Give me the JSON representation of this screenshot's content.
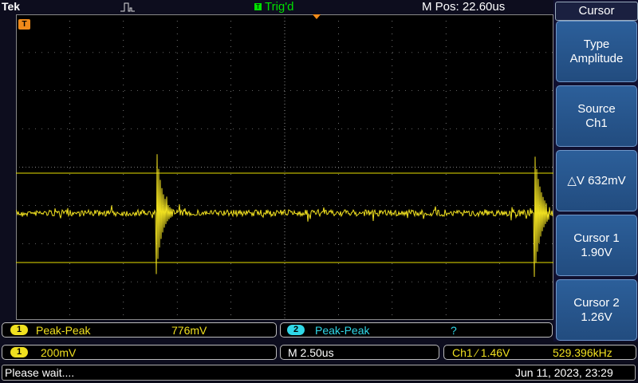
{
  "header": {
    "brand": "Tek",
    "trigger_marker": "T",
    "trigger_status": "Trig'd",
    "position": "M Pos: 22.60us"
  },
  "screen": {
    "trigger_marker": "T",
    "trace_color": "#f0e020",
    "grid_color": "#c0c0c0"
  },
  "cursor_menu": {
    "title": "Cursor",
    "items": [
      {
        "line1": "Type",
        "line2": "Amplitude"
      },
      {
        "line1": "Source",
        "line2": "Ch1"
      },
      {
        "line1": "△V 632mV",
        "line2": ""
      },
      {
        "line1": "Cursor 1",
        "line2": "1.90V"
      },
      {
        "line1": "Cursor 2",
        "line2": "1.26V"
      }
    ]
  },
  "measurements": [
    {
      "channel": "1",
      "label": "Peak-Peak",
      "value": "776mV"
    },
    {
      "channel": "2",
      "label": "Peak-Peak",
      "value": "?"
    }
  ],
  "scale": {
    "channel": "1",
    "volts_div": "200mV",
    "timebase": "M 2.50us",
    "trigger_label": "Ch1 ⁄ 1.46V",
    "frequency": "529.396kHz"
  },
  "status": {
    "message": "Please wait....",
    "datetime": "Jun 11, 2023, 23:29"
  }
}
